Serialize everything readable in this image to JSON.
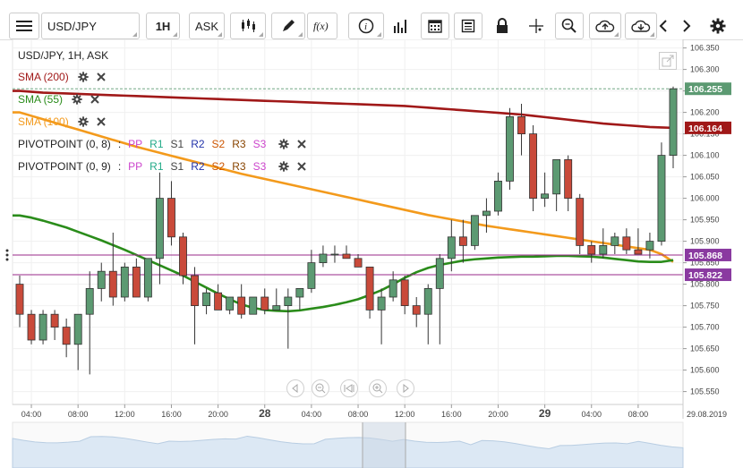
{
  "toolbar": {
    "symbol": "USD/JPY",
    "interval": "1H",
    "price_type": "ASK",
    "icons": [
      "menu-icon",
      "candles-icon",
      "pen-icon",
      "fx-icon",
      "info-icon",
      "bars-icon",
      "calendar-icon",
      "document-icon",
      "lock-icon",
      "crosshair-icon",
      "zoom-icon",
      "cloud-upload-icon",
      "cloud-download-icon",
      "chevron-left-icon",
      "chevron-right-icon",
      "gear-icon"
    ]
  },
  "legend": {
    "title": "USD/JPY, 1H, ASK",
    "sma200": "SMA (200)",
    "sma55": "SMA (55)",
    "sma100": "SMA (100)",
    "pivot1_name": "PIVOTPOINT (0, 8)",
    "pivot2_name": "PIVOTPOINT (0, 9)",
    "pivot_sep": ":",
    "pivot_levels": [
      "PP",
      "R1",
      "S1",
      "R2",
      "S2",
      "R3",
      "S3"
    ],
    "pivot_colors": [
      "#cc44cc",
      "#22aa88",
      "#444444",
      "#2233aa",
      "#cc5500",
      "#884400",
      "#cc44cc"
    ]
  },
  "colors": {
    "bull": "#5c9a72",
    "bear": "#c94a3a",
    "sma200": "#a01818",
    "sma55": "#2a8c1a",
    "sma100": "#f39a1c",
    "pivot_upper": "#9a2a8a",
    "pivot_lower": "#9a2a8a",
    "price_tag": "#5c9a72",
    "sma200_tag": "#a01818",
    "pivot_tag": "#8a3aa0"
  },
  "chart_data": {
    "type": "candlestick",
    "y_ticks": [
      "106.350",
      "106.300",
      "106.250",
      "106.200",
      "106.150",
      "106.100",
      "106.050",
      "106.000",
      "105.950",
      "105.900",
      "105.850",
      "105.800",
      "105.750",
      "105.700",
      "105.650",
      "105.600",
      "105.550"
    ],
    "ylim": [
      105.52,
      106.37
    ],
    "x_ticks": [
      "04:00",
      "08:00",
      "12:00",
      "16:00",
      "20:00",
      "28",
      "04:00",
      "08:00",
      "12:00",
      "16:00",
      "20:00",
      "29",
      "04:00",
      "08:00"
    ],
    "x_bold": [
      "28",
      "29"
    ],
    "date_label": "29.08.2019",
    "candles": [
      {
        "o": 105.8,
        "h": 105.82,
        "l": 105.7,
        "c": 105.73
      },
      {
        "o": 105.73,
        "h": 105.74,
        "l": 105.66,
        "c": 105.67
      },
      {
        "o": 105.67,
        "h": 105.74,
        "l": 105.66,
        "c": 105.73
      },
      {
        "o": 105.73,
        "h": 105.74,
        "l": 105.67,
        "c": 105.7
      },
      {
        "o": 105.7,
        "h": 105.72,
        "l": 105.63,
        "c": 105.66
      },
      {
        "o": 105.66,
        "h": 105.73,
        "l": 105.6,
        "c": 105.73
      },
      {
        "o": 105.73,
        "h": 105.83,
        "l": 105.59,
        "c": 105.79
      },
      {
        "o": 105.79,
        "h": 105.85,
        "l": 105.76,
        "c": 105.83
      },
      {
        "o": 105.83,
        "h": 105.92,
        "l": 105.75,
        "c": 105.77
      },
      {
        "o": 105.77,
        "h": 105.85,
        "l": 105.76,
        "c": 105.84
      },
      {
        "o": 105.84,
        "h": 105.86,
        "l": 105.77,
        "c": 105.77
      },
      {
        "o": 105.77,
        "h": 105.86,
        "l": 105.76,
        "c": 105.86
      },
      {
        "o": 105.86,
        "h": 106.06,
        "l": 105.8,
        "c": 106.0
      },
      {
        "o": 106.0,
        "h": 106.04,
        "l": 105.89,
        "c": 105.91
      },
      {
        "o": 105.91,
        "h": 105.92,
        "l": 105.8,
        "c": 105.82
      },
      {
        "o": 105.82,
        "h": 105.84,
        "l": 105.66,
        "c": 105.75
      },
      {
        "o": 105.75,
        "h": 105.79,
        "l": 105.73,
        "c": 105.78
      },
      {
        "o": 105.78,
        "h": 105.8,
        "l": 105.74,
        "c": 105.74
      },
      {
        "o": 105.74,
        "h": 105.77,
        "l": 105.73,
        "c": 105.77
      },
      {
        "o": 105.77,
        "h": 105.8,
        "l": 105.72,
        "c": 105.73
      },
      {
        "o": 105.73,
        "h": 105.77,
        "l": 105.73,
        "c": 105.77
      },
      {
        "o": 105.77,
        "h": 105.79,
        "l": 105.73,
        "c": 105.74
      },
      {
        "o": 105.74,
        "h": 105.79,
        "l": 105.74,
        "c": 105.75
      },
      {
        "o": 105.75,
        "h": 105.79,
        "l": 105.65,
        "c": 105.77
      },
      {
        "o": 105.77,
        "h": 105.79,
        "l": 105.74,
        "c": 105.79
      },
      {
        "o": 105.79,
        "h": 105.88,
        "l": 105.78,
        "c": 105.85
      },
      {
        "o": 105.85,
        "h": 105.89,
        "l": 105.84,
        "c": 105.87
      },
      {
        "o": 105.87,
        "h": 105.89,
        "l": 105.85,
        "c": 105.87
      },
      {
        "o": 105.87,
        "h": 105.89,
        "l": 105.86,
        "c": 105.86
      },
      {
        "o": 105.86,
        "h": 105.87,
        "l": 105.84,
        "c": 105.84
      },
      {
        "o": 105.84,
        "h": 105.84,
        "l": 105.72,
        "c": 105.74
      },
      {
        "o": 105.74,
        "h": 105.79,
        "l": 105.66,
        "c": 105.77
      },
      {
        "o": 105.77,
        "h": 105.83,
        "l": 105.76,
        "c": 105.81
      },
      {
        "o": 105.81,
        "h": 105.82,
        "l": 105.73,
        "c": 105.75
      },
      {
        "o": 105.75,
        "h": 105.77,
        "l": 105.7,
        "c": 105.73
      },
      {
        "o": 105.73,
        "h": 105.8,
        "l": 105.66,
        "c": 105.79
      },
      {
        "o": 105.79,
        "h": 105.87,
        "l": 105.66,
        "c": 105.86
      },
      {
        "o": 105.86,
        "h": 105.95,
        "l": 105.83,
        "c": 105.91
      },
      {
        "o": 105.91,
        "h": 105.95,
        "l": 105.85,
        "c": 105.89
      },
      {
        "o": 105.89,
        "h": 105.96,
        "l": 105.88,
        "c": 105.96
      },
      {
        "o": 105.96,
        "h": 106.0,
        "l": 105.92,
        "c": 105.97
      },
      {
        "o": 105.97,
        "h": 106.06,
        "l": 105.96,
        "c": 106.04
      },
      {
        "o": 106.04,
        "h": 106.21,
        "l": 106.02,
        "c": 106.19
      },
      {
        "o": 106.19,
        "h": 106.22,
        "l": 106.1,
        "c": 106.15
      },
      {
        "o": 106.15,
        "h": 106.17,
        "l": 105.97,
        "c": 106.0
      },
      {
        "o": 106.0,
        "h": 106.06,
        "l": 105.98,
        "c": 106.01
      },
      {
        "o": 106.01,
        "h": 106.09,
        "l": 105.97,
        "c": 106.09
      },
      {
        "o": 106.09,
        "h": 106.1,
        "l": 105.97,
        "c": 106.0
      },
      {
        "o": 106.0,
        "h": 106.01,
        "l": 105.87,
        "c": 105.89
      },
      {
        "o": 105.89,
        "h": 105.9,
        "l": 105.85,
        "c": 105.87
      },
      {
        "o": 105.87,
        "h": 105.93,
        "l": 105.86,
        "c": 105.89
      },
      {
        "o": 105.89,
        "h": 105.92,
        "l": 105.87,
        "c": 105.91
      },
      {
        "o": 105.91,
        "h": 105.93,
        "l": 105.87,
        "c": 105.88
      },
      {
        "o": 105.88,
        "h": 105.93,
        "l": 105.87,
        "c": 105.87
      },
      {
        "o": 105.88,
        "h": 105.92,
        "l": 105.86,
        "c": 105.9
      },
      {
        "o": 105.9,
        "h": 106.13,
        "l": 105.89,
        "c": 106.1
      },
      {
        "o": 106.1,
        "h": 106.26,
        "l": 106.07,
        "c": 106.255
      }
    ],
    "sma200": [
      106.25,
      106.248,
      106.246,
      106.245,
      106.244,
      106.243,
      106.242,
      106.241,
      106.24,
      106.239,
      106.238,
      106.237,
      106.236,
      106.235,
      106.234,
      106.233,
      106.232,
      106.231,
      106.23,
      106.229,
      106.228,
      106.227,
      106.226,
      106.225,
      106.224,
      106.223,
      106.222,
      106.221,
      106.22,
      106.219,
      106.218,
      106.217,
      106.216,
      106.215,
      106.213,
      106.211,
      106.209,
      106.207,
      106.205,
      106.203,
      106.201,
      106.199,
      106.197,
      106.195,
      106.192,
      106.189,
      106.186,
      106.183,
      106.18,
      106.177,
      106.174,
      106.172,
      106.17,
      106.168,
      106.166,
      106.165,
      106.164
    ],
    "sma55": [
      105.96,
      105.955,
      105.948,
      105.94,
      105.932,
      105.922,
      105.912,
      105.902,
      105.891,
      105.88,
      105.868,
      105.856,
      105.844,
      105.832,
      105.82,
      105.806,
      105.792,
      105.778,
      105.765,
      105.753,
      105.745,
      105.74,
      105.738,
      105.737,
      105.739,
      105.743,
      105.747,
      105.752,
      105.758,
      105.765,
      105.775,
      105.786,
      105.8,
      105.815,
      105.828,
      105.838,
      105.845,
      105.85,
      105.855,
      105.858,
      105.86,
      105.862,
      105.863,
      105.864,
      105.864,
      105.865,
      105.866,
      105.866,
      105.865,
      105.864,
      105.862,
      105.859,
      105.856,
      105.853,
      105.852,
      105.852,
      105.856
    ],
    "sma100": [
      106.2,
      106.192,
      106.184,
      106.176,
      106.168,
      106.16,
      106.152,
      106.144,
      106.136,
      106.128,
      106.12,
      106.113,
      106.106,
      106.099,
      106.092,
      106.085,
      106.078,
      106.071,
      106.064,
      106.057,
      106.051,
      106.045,
      106.039,
      106.033,
      106.027,
      106.021,
      106.015,
      106.009,
      106.003,
      105.997,
      105.991,
      105.985,
      105.979,
      105.973,
      105.967,
      105.961,
      105.956,
      105.951,
      105.946,
      105.941,
      105.936,
      105.932,
      105.928,
      105.924,
      105.92,
      105.916,
      105.912,
      105.908,
      105.904,
      105.9,
      105.896,
      105.892,
      105.888,
      105.884,
      105.88,
      105.87,
      105.852
    ],
    "hline_upper": 105.868,
    "hline_lower": 105.822,
    "tags": {
      "last": "106.255",
      "sma200": "106.164",
      "pivot_upper": "105.868",
      "pivot_lower": "105.822"
    }
  },
  "nav_icons": [
    "scroll-left-icon",
    "zoom-out-icon",
    "reset-icon",
    "zoom-in-icon",
    "scroll-right-icon"
  ]
}
